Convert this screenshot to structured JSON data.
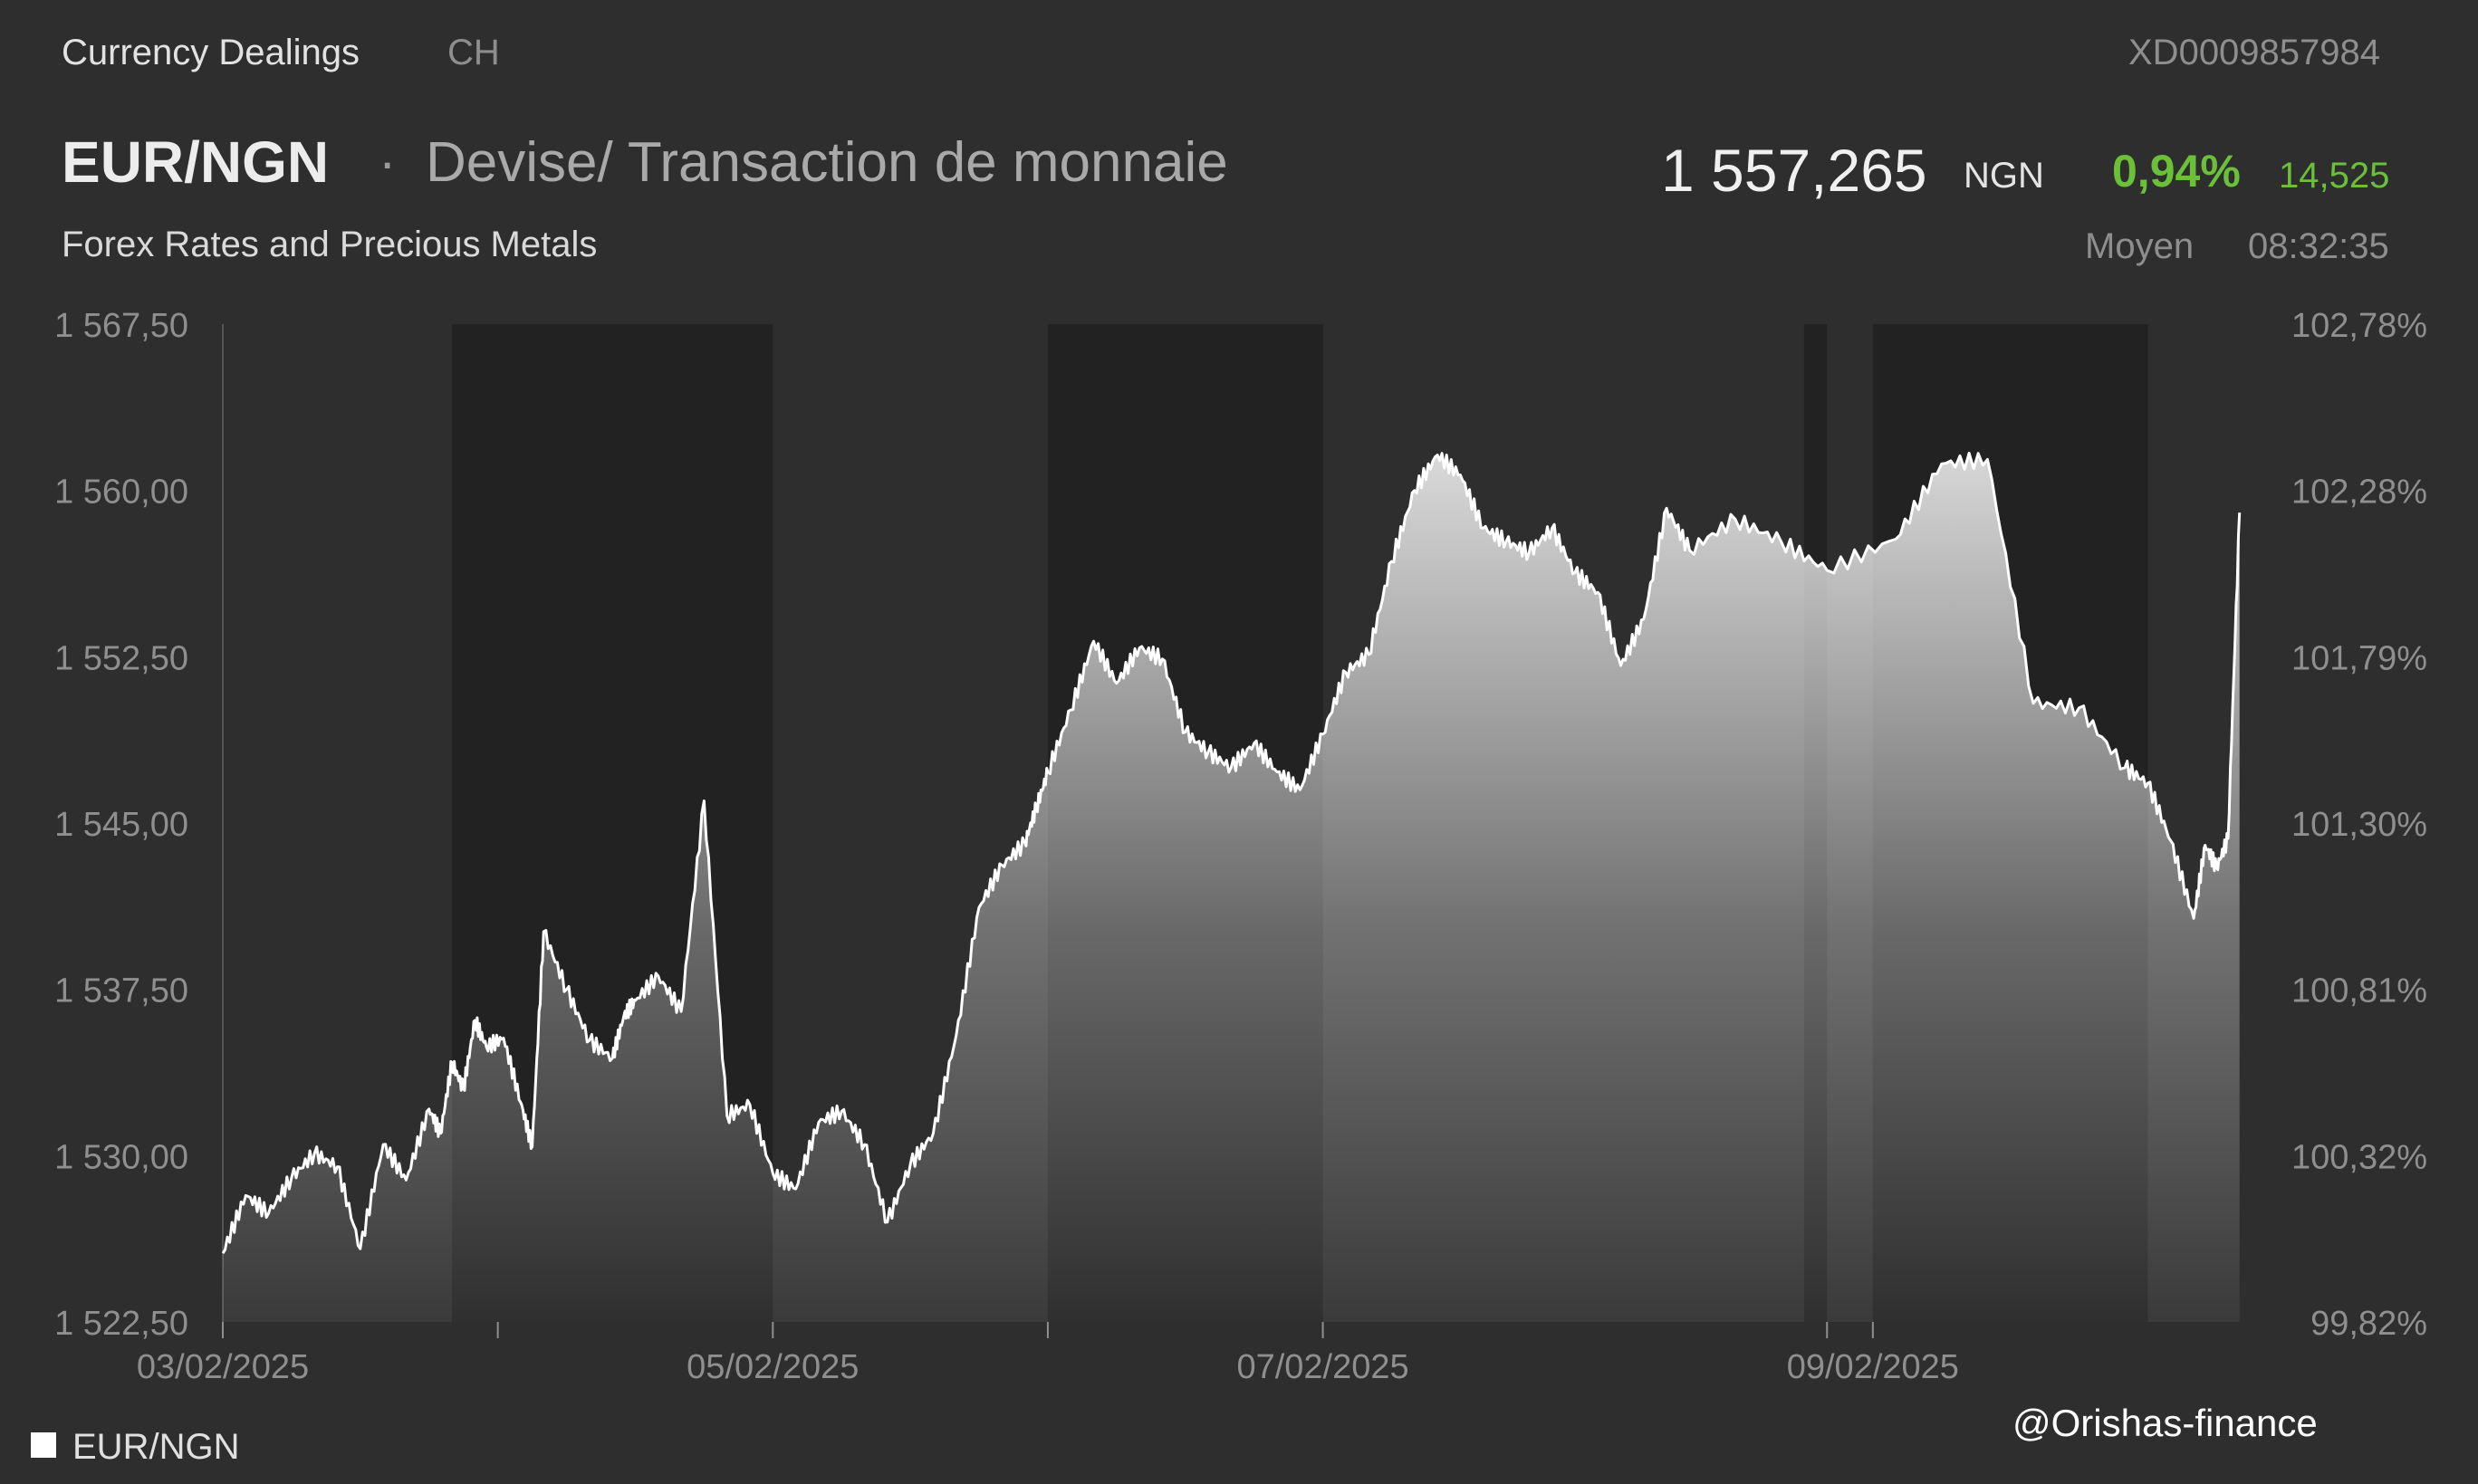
{
  "header": {
    "category": "Currency Dealings",
    "exchange": "CH",
    "isin": "XD0009857984",
    "pair": "EUR/NGN",
    "separator": "·",
    "description": "Devise/ Transaction de monnaie",
    "subtitle": "Forex Rates and Precious Metals",
    "price": "1 557,265",
    "price_unit": "NGN",
    "change_pct": "0,94%",
    "change_abs": "14,525",
    "price_type": "Moyen",
    "time": "08:32:35"
  },
  "colors": {
    "background": "#2e2e2e",
    "closed_shade": "#222222",
    "line": "#ffffff",
    "positive": "#6bc03a"
  },
  "legend": {
    "label": "EUR/NGN"
  },
  "watermark": "@Orishas-finance",
  "chart_data": {
    "type": "area",
    "series": [
      {
        "name": "EUR/NGN",
        "x": [
          "03/02/2025 00:00",
          "03/02/2025 02:00",
          "03/02/2025 04:00",
          "03/02/2025 06:00",
          "03/02/2025 08:00",
          "03/02/2025 10:00",
          "03/02/2025 12:00",
          "03/02/2025 14:00",
          "03/02/2025 16:00",
          "03/02/2025 18:00",
          "03/02/2025 19:00",
          "03/02/2025 20:00",
          "03/02/2025 21:00",
          "03/02/2025 22:00",
          "03/02/2025 23:00",
          "04/02/2025 00:30",
          "04/02/2025 02:00",
          "04/02/2025 03:00",
          "04/02/2025 04:00",
          "04/02/2025 06:00",
          "04/02/2025 08:00",
          "04/02/2025 10:00",
          "04/02/2025 11:00",
          "04/02/2025 12:00",
          "04/02/2025 14:00",
          "04/02/2025 16:00",
          "04/02/2025 18:00",
          "04/02/2025 20:00",
          "04/02/2025 22:00",
          "05/02/2025 00:00",
          "05/02/2025 02:00",
          "05/02/2025 04:00",
          "05/02/2025 06:00",
          "05/02/2025 08:00",
          "05/02/2025 10:00",
          "05/02/2025 12:00",
          "05/02/2025 14:00",
          "05/02/2025 16:00",
          "05/02/2025 18:00",
          "05/02/2025 20:00",
          "05/02/2025 22:00",
          "05/02/2025 23:00",
          "06/02/2025 00:00",
          "06/02/2025 02:00",
          "06/02/2025 04:00",
          "06/02/2025 06:00",
          "06/02/2025 08:00",
          "06/02/2025 10:00",
          "06/02/2025 12:00",
          "06/02/2025 14:00",
          "06/02/2025 16:00",
          "06/02/2025 18:00",
          "06/02/2025 20:00",
          "06/02/2025 22:00",
          "07/02/2025 00:00",
          "07/02/2025 02:00",
          "07/02/2025 04:00",
          "07/02/2025 06:00",
          "07/02/2025 08:00",
          "07/02/2025 10:00",
          "07/02/2025 12:00",
          "07/02/2025 14:00",
          "07/02/2025 16:00",
          "07/02/2025 18:00",
          "07/02/2025 20:00",
          "07/02/2025 22:00",
          "08/02/2025 00:00",
          "08/02/2025 02:00",
          "08/02/2025 04:00",
          "08/02/2025 06:00",
          "08/02/2025 08:00",
          "08/02/2025 12:00",
          "08/02/2025 16:00",
          "08/02/2025 20:00",
          "09/02/2025 02:00",
          "09/02/2025 06:00",
          "09/02/2025 10:00",
          "09/02/2025 14:00",
          "09/02/2025 18:00",
          "09/02/2025 22:00",
          "10/02/2025 00:00",
          "10/02/2025 02:00",
          "10/02/2025 04:00",
          "10/02/2025 05:00",
          "10/02/2025 06:00",
          "10/02/2025 07:00",
          "10/02/2025 08:00"
        ],
        "values": [
          1525.6,
          1528.2,
          1527.4,
          1529.0,
          1530.1,
          1529.5,
          1525.8,
          1530.5,
          1528.9,
          1532.1,
          1531.0,
          1534.2,
          1533.0,
          1536.1,
          1534.9,
          1535.3,
          1532.4,
          1530.4,
          1540.1,
          1537.5,
          1535.2,
          1534.4,
          1536.3,
          1537.0,
          1538.1,
          1536.5,
          1546.0,
          1531.8,
          1532.3,
          1529.2,
          1528.5,
          1531.5,
          1532.0,
          1530.5,
          1527.0,
          1529.6,
          1531.0,
          1535.4,
          1541.2,
          1543.1,
          1544.1,
          1545.7,
          1547.3,
          1550.1,
          1553.2,
          1551.3,
          1552.9,
          1552.4,
          1549.1,
          1548.2,
          1547.5,
          1548.6,
          1547.3,
          1546.5,
          1549.0,
          1551.8,
          1552.6,
          1556.8,
          1560.0,
          1561.6,
          1560.7,
          1558.3,
          1557.7,
          1557.2,
          1558.3,
          1556.3,
          1555.4,
          1552.1,
          1554.2,
          1559.2,
          1557.3,
          1558.7,
          1557.7,
          1556.4,
          1557.8,
          1561.2,
          1561.4,
          1550.4,
          1550.2,
          1547.5,
          1546.8,
          1544.2,
          1540.7,
          1544.0,
          1543.0,
          1544.3,
          1559.0
        ],
        "color": "#ffffff"
      }
    ],
    "xlabel": "",
    "ylabel": "",
    "ylim": [
      1522.5,
      1567.5
    ],
    "yticks": [
      "1 567,50",
      "1 560,00",
      "1 552,50",
      "1 545,00",
      "1 537,50",
      "1 530,00",
      "1 522,50"
    ],
    "yticks_right": [
      "102,78%",
      "102,28%",
      "101,79%",
      "101,30%",
      "100,81%",
      "100,32%",
      "99,82%"
    ],
    "xticks": [
      "03/02/2025",
      "05/02/2025",
      "07/02/2025",
      "09/02/2025"
    ],
    "closed_periods": [
      [
        "03/02/2025 20:00",
        "04/02/2025 24:00"
      ],
      [
        "06/02/2025 00:00",
        "07/02/2025 00:00"
      ],
      [
        "08/02/2025 18:00",
        "08/02/2025 20:00"
      ],
      [
        "09/02/2025 00:00",
        "10/02/2025 00:00"
      ]
    ],
    "grid": false,
    "legend": "bottom-left"
  }
}
